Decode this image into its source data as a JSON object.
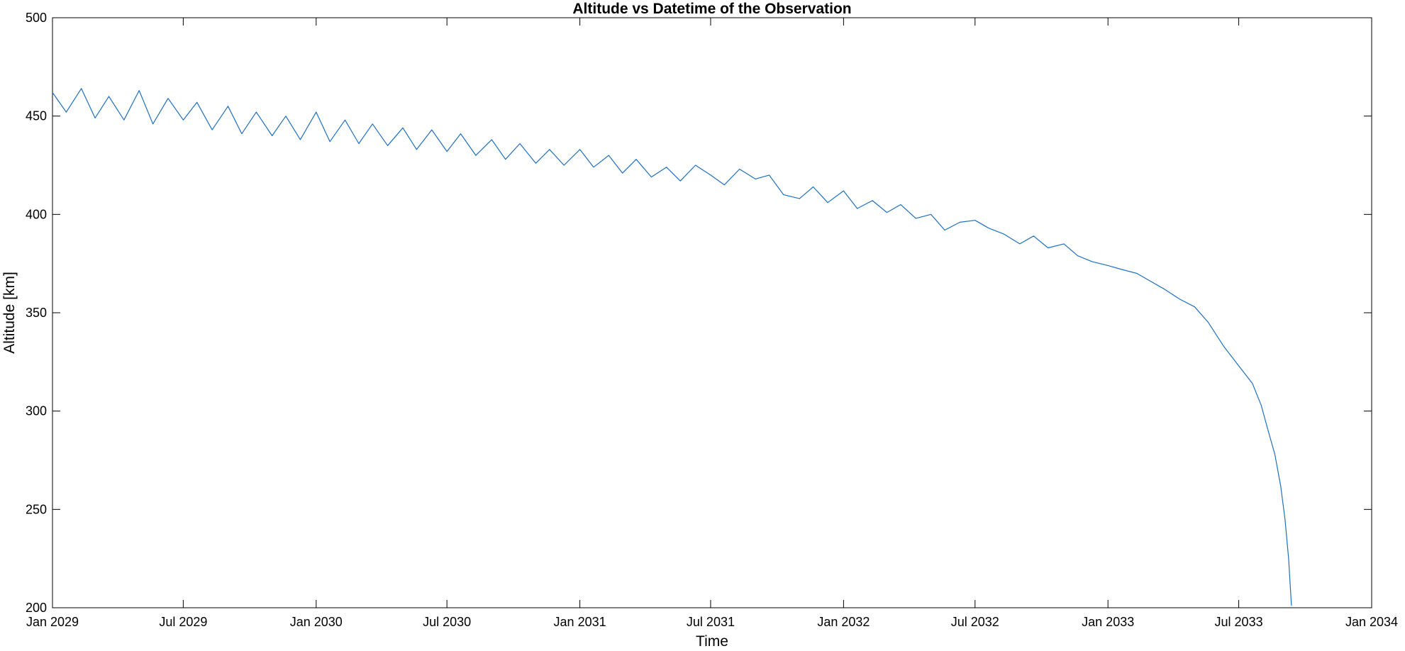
{
  "chart_data": {
    "type": "line",
    "title": "Altitude vs Datetime of the Observation",
    "xlabel": "Time",
    "ylabel": "Altitude [km]",
    "x_ticks": [
      "2029-01-01",
      "2029-07-01",
      "2030-01-01",
      "2030-07-01",
      "2031-01-01",
      "2031-07-01",
      "2032-01-01",
      "2032-07-01",
      "2033-01-01",
      "2033-07-01",
      "2034-01-01"
    ],
    "x_tick_labels": [
      "Jan 2029",
      "Jul 2029",
      "Jan 2030",
      "Jul 2030",
      "Jan 2031",
      "Jul 2031",
      "Jan 2032",
      "Jul 2032",
      "Jan 2033",
      "Jul 2033",
      "Jan 2034"
    ],
    "y_ticks": [
      200,
      250,
      300,
      350,
      400,
      450,
      500
    ],
    "y_tick_labels": [
      "200",
      "250",
      "300",
      "350",
      "400",
      "450",
      "500"
    ],
    "xlim": [
      "2029-01-01",
      "2034-01-01"
    ],
    "ylim": [
      200,
      500
    ],
    "grid": false,
    "series": [
      {
        "color": "#1f6fbf",
        "x": [
          "2029-01-01",
          "2029-01-20",
          "2029-02-10",
          "2029-03-01",
          "2029-03-20",
          "2029-04-10",
          "2029-05-01",
          "2029-05-20",
          "2029-06-10",
          "2029-07-01",
          "2029-07-20",
          "2029-08-10",
          "2029-09-01",
          "2029-09-20",
          "2029-10-10",
          "2029-11-01",
          "2029-11-20",
          "2029-12-10",
          "2030-01-01",
          "2030-01-20",
          "2030-02-10",
          "2030-03-01",
          "2030-03-20",
          "2030-04-10",
          "2030-05-01",
          "2030-05-20",
          "2030-06-10",
          "2030-07-01",
          "2030-07-20",
          "2030-08-10",
          "2030-09-01",
          "2030-09-20",
          "2030-10-10",
          "2030-11-01",
          "2030-11-20",
          "2030-12-10",
          "2031-01-01",
          "2031-01-20",
          "2031-02-10",
          "2031-03-01",
          "2031-03-20",
          "2031-04-10",
          "2031-05-01",
          "2031-05-20",
          "2031-06-10",
          "2031-07-01",
          "2031-07-20",
          "2031-08-10",
          "2031-09-01",
          "2031-09-20",
          "2031-10-10",
          "2031-11-01",
          "2031-11-20",
          "2031-12-10",
          "2032-01-01",
          "2032-01-20",
          "2032-02-10",
          "2032-03-01",
          "2032-03-20",
          "2032-04-10",
          "2032-05-01",
          "2032-05-20",
          "2032-06-10",
          "2032-07-01",
          "2032-07-20",
          "2032-08-10",
          "2032-09-01",
          "2032-09-20",
          "2032-10-10",
          "2032-11-01",
          "2032-11-20",
          "2032-12-10",
          "2033-01-01",
          "2033-01-20",
          "2033-02-10",
          "2033-03-01",
          "2033-03-20",
          "2033-04-10",
          "2033-05-01",
          "2033-05-20",
          "2033-06-10",
          "2033-07-01",
          "2033-07-20",
          "2033-08-01",
          "2033-08-10",
          "2033-08-20",
          "2033-08-28",
          "2033-09-03",
          "2033-09-08",
          "2033-09-12"
        ],
        "y": [
          462,
          452,
          464,
          449,
          460,
          448,
          463,
          446,
          459,
          448,
          457,
          443,
          455,
          441,
          452,
          440,
          450,
          438,
          452,
          437,
          448,
          436,
          446,
          435,
          444,
          433,
          443,
          432,
          441,
          430,
          438,
          428,
          436,
          426,
          433,
          425,
          433,
          424,
          430,
          421,
          428,
          419,
          424,
          417,
          425,
          420,
          415,
          423,
          418,
          420,
          410,
          408,
          414,
          406,
          412,
          403,
          407,
          401,
          405,
          398,
          400,
          392,
          396,
          397,
          393,
          390,
          385,
          389,
          383,
          385,
          379,
          376,
          374,
          372,
          370,
          366,
          362,
          357,
          353,
          345,
          333,
          323,
          314,
          303,
          291,
          278,
          262,
          245,
          225,
          201
        ]
      }
    ]
  }
}
